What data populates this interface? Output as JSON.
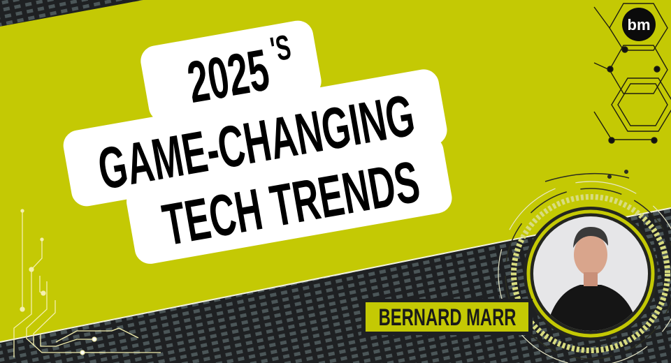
{
  "title": {
    "line1_main": "2025",
    "line1_super": "'S",
    "line2": "GAME-CHANGING",
    "line3": "TECH TRENDS"
  },
  "presenter": {
    "name": "BERNARD MARR"
  },
  "logo": {
    "text": "bm",
    "icon": "bm-logo-icon"
  },
  "colors": {
    "accent": "#c4c904",
    "dark": "#1e2022",
    "panel": "#ffffff"
  }
}
